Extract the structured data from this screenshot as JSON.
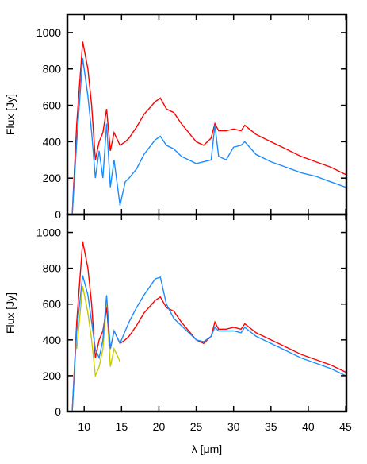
{
  "chart_data": [
    {
      "type": "line",
      "y_label": "Flux [Jy]",
      "x": [
        8.4,
        9,
        9.8,
        10.5,
        11,
        11.5,
        12,
        12.5,
        13,
        13.5,
        14,
        14.8,
        15.5,
        16,
        17,
        18,
        19.5,
        20.2,
        21,
        22,
        23,
        24,
        25,
        26,
        27,
        27.5,
        28,
        29,
        30,
        31,
        31.5,
        33,
        35,
        37,
        39,
        41,
        43,
        45
      ],
      "series": [
        {
          "color": "#ff0000",
          "values": [
            0,
            500,
            950,
            800,
            600,
            300,
            400,
            450,
            580,
            350,
            450,
            380,
            400,
            420,
            480,
            550,
            620,
            640,
            580,
            560,
            500,
            450,
            400,
            380,
            420,
            500,
            460,
            460,
            470,
            460,
            490,
            440,
            400,
            360,
            320,
            290,
            260,
            220
          ]
        },
        {
          "color": "#1a8cff",
          "values": [
            0,
            400,
            860,
            650,
            450,
            200,
            350,
            200,
            500,
            150,
            300,
            50,
            180,
            200,
            250,
            330,
            410,
            430,
            380,
            360,
            320,
            300,
            280,
            290,
            300,
            490,
            320,
            300,
            370,
            380,
            400,
            330,
            290,
            260,
            230,
            210,
            180,
            150
          ]
        }
      ],
      "xlim": [
        7.75,
        45.1
      ],
      "xticks": [
        10,
        15,
        20,
        25,
        30,
        35,
        40,
        45
      ],
      "xtick_labels": false,
      "ylim": [
        0,
        1100
      ],
      "yticks": [
        0,
        200,
        400,
        600,
        800,
        1000
      ]
    },
    {
      "type": "line",
      "y_label": "Flux [Jy]",
      "x_label": "λ [μm]",
      "x": [
        8.4,
        9,
        9.8,
        10.5,
        11,
        11.5,
        12,
        12.5,
        13,
        13.5,
        14,
        14.8,
        15.5,
        16,
        17,
        18,
        19.5,
        20.2,
        21,
        22,
        23,
        24,
        25,
        26,
        27,
        27.5,
        28,
        29,
        30,
        31,
        31.5,
        33,
        35,
        37,
        39,
        41,
        43,
        45
      ],
      "series": [
        {
          "color": "#c8c800",
          "values": [
            null,
            350,
            700,
            550,
            400,
            200,
            250,
            350,
            600,
            250,
            350,
            280,
            null,
            null,
            null,
            null,
            null,
            null,
            null,
            null,
            null,
            null,
            null,
            null,
            null,
            null,
            null,
            null,
            null,
            null,
            null,
            null,
            null,
            null,
            null,
            null,
            null,
            null
          ]
        },
        {
          "color": "#ff0000",
          "values": [
            0,
            500,
            950,
            800,
            600,
            300,
            400,
            450,
            580,
            350,
            450,
            380,
            400,
            420,
            480,
            550,
            620,
            640,
            580,
            560,
            500,
            450,
            400,
            380,
            420,
            500,
            460,
            460,
            470,
            460,
            490,
            440,
            400,
            360,
            320,
            290,
            260,
            220
          ]
        },
        {
          "color": "#1a8cff",
          "values": [
            0,
            450,
            760,
            650,
            500,
            350,
            300,
            400,
            650,
            350,
            450,
            380,
            450,
            500,
            580,
            650,
            740,
            750,
            600,
            520,
            480,
            440,
            400,
            390,
            420,
            470,
            450,
            450,
            450,
            440,
            470,
            420,
            380,
            340,
            300,
            270,
            240,
            200
          ]
        }
      ],
      "xlim": [
        7.75,
        45.1
      ],
      "xticks": [
        10,
        15,
        20,
        25,
        30,
        35,
        40,
        45
      ],
      "xtick_labels": true,
      "ylim": [
        0,
        1100
      ],
      "yticks": [
        0,
        200,
        400,
        600,
        800,
        1000
      ]
    }
  ]
}
